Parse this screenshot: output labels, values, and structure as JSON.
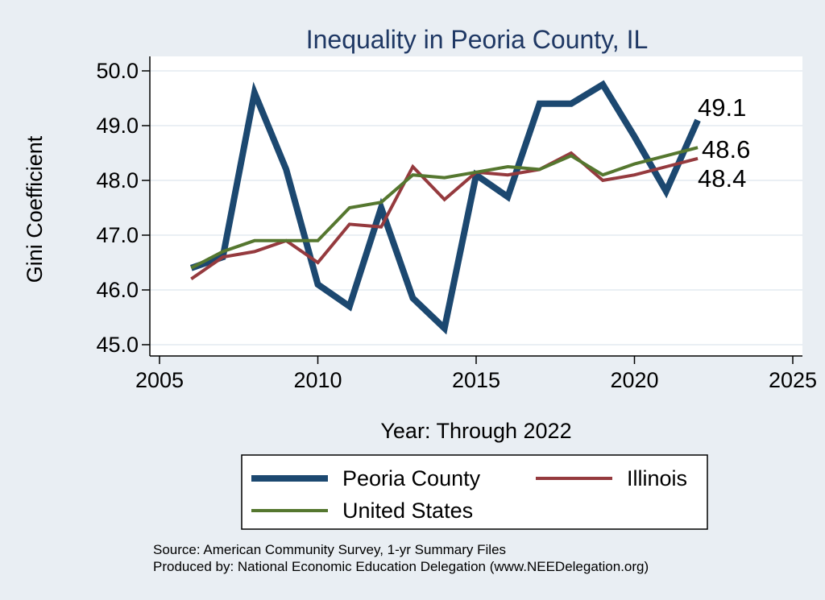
{
  "chart_data": {
    "type": "line",
    "title": "Inequality in Peoria County, IL",
    "xlabel": "Year: Through 2022",
    "ylabel": "Gini Coefficient",
    "xlim": [
      2005,
      2025
    ],
    "ylim": [
      45.0,
      50.0
    ],
    "x_ticks": [
      2005,
      2010,
      2015,
      2020,
      2025
    ],
    "y_ticks": [
      "45.0",
      "46.0",
      "47.0",
      "48.0",
      "49.0",
      "50.0"
    ],
    "grid": "horizontal",
    "legend_position": "bottom",
    "x": [
      2006,
      2007,
      2008,
      2009,
      2010,
      2011,
      2012,
      2013,
      2014,
      2015,
      2016,
      2017,
      2018,
      2019,
      2020,
      2021,
      2022
    ],
    "series": [
      {
        "name": "Peoria County",
        "color": "#1c4870",
        "values": [
          46.4,
          46.6,
          49.6,
          48.2,
          46.1,
          45.7,
          47.5,
          45.85,
          45.3,
          48.1,
          47.7,
          49.4,
          49.4,
          49.75,
          48.8,
          47.8,
          49.1
        ],
        "end_label": "49.1"
      },
      {
        "name": "Illinois",
        "color": "#953a3e",
        "values": [
          46.2,
          46.6,
          46.7,
          46.9,
          46.5,
          47.2,
          47.15,
          48.25,
          47.65,
          48.15,
          48.1,
          48.2,
          48.5,
          48.0,
          48.1,
          48.25,
          48.4
        ],
        "end_label": "48.4"
      },
      {
        "name": "United States",
        "color": "#55772f",
        "values": [
          46.4,
          46.7,
          46.9,
          46.9,
          46.9,
          47.5,
          47.6,
          48.1,
          48.05,
          48.15,
          48.25,
          48.2,
          48.45,
          48.1,
          48.3,
          48.45,
          48.6
        ],
        "end_label": "48.6"
      }
    ],
    "source_lines": [
      "Source: American Community Survey, 1-yr Summary Files",
      "Produced by: National Economic Education Delegation (www.NEEDelegation.org)"
    ]
  }
}
